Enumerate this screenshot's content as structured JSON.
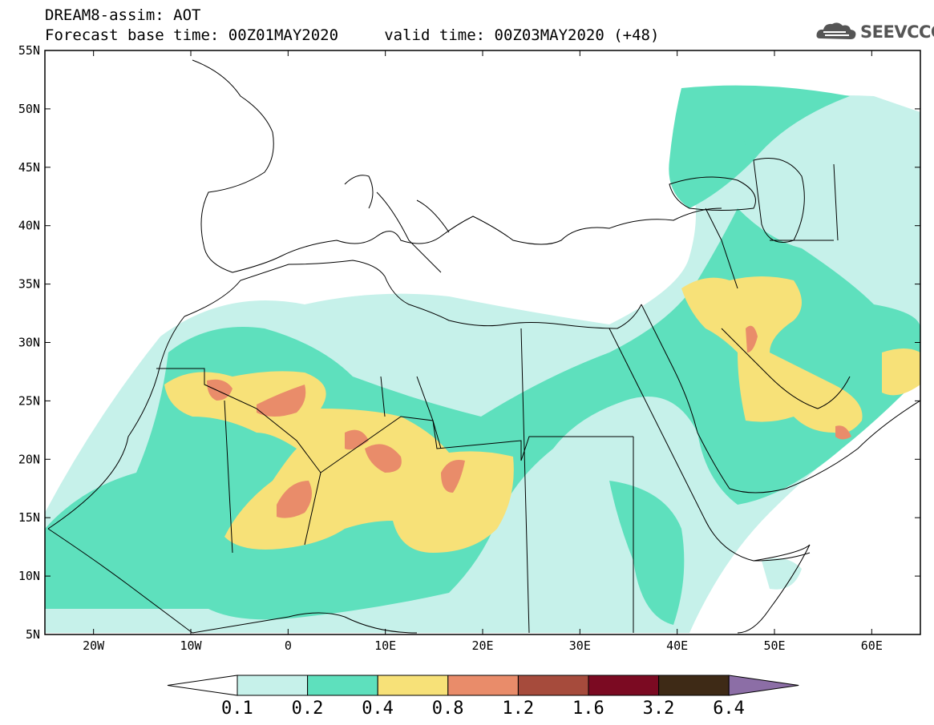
{
  "header": {
    "line1": "DREAM8-assim: AOT",
    "line2": "Forecast base time: 00Z01MAY2020     valid time: 00Z03MAY2020 (+48)"
  },
  "logo": {
    "text": "SEEVCCC",
    "icon": "cloud-icon"
  },
  "map": {
    "lon_range": [
      -25,
      65
    ],
    "lat_range": [
      5,
      55
    ],
    "lon_ticks": [
      "20W",
      "10W",
      "0",
      "10E",
      "20E",
      "30E",
      "40E",
      "50E",
      "60E"
    ],
    "lat_ticks": [
      "55N",
      "50N",
      "45N",
      "40N",
      "35N",
      "30N",
      "25N",
      "20N",
      "15N",
      "10N",
      "5N"
    ]
  },
  "colorbar": {
    "labels": [
      "0.1",
      "0.2",
      "0.4",
      "0.8",
      "1.2",
      "1.6",
      "3.2",
      "6.4"
    ],
    "colors": [
      "#ffffff",
      "#c6f1ea",
      "#5ee0bd",
      "#f7e178",
      "#e98c6a",
      "#a64b3c",
      "#7b0a22",
      "#3e2a16",
      "#8c6ea6"
    ]
  }
}
